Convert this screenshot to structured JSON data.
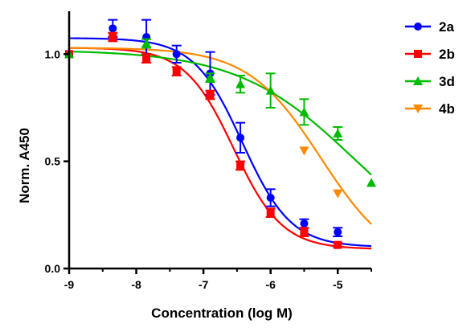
{
  "chart_data": {
    "type": "scatter",
    "title": "",
    "xlabel": "Concentration (log M)",
    "ylabel": "Norm. A450",
    "xlim": [
      -9,
      -4.5
    ],
    "ylim": [
      0,
      1.2
    ],
    "x_ticks": [
      -9,
      -8,
      -7,
      -6,
      -5
    ],
    "x_tick_labels": [
      "-9",
      "-8",
      "-7",
      "-6",
      "-5"
    ],
    "y_ticks": [
      0.0,
      0.5,
      1.0
    ],
    "y_tick_labels": [
      "0.0",
      "0.5",
      "1.0"
    ],
    "grid": false,
    "legend_position": "right",
    "series": [
      {
        "name": "2a",
        "color": "#0000ff",
        "marker": "circle",
        "x": [
          -9,
          -8.35,
          -7.85,
          -7.4,
          -6.9,
          -6.45,
          -6.0,
          -5.5,
          -5.0
        ],
        "y": [
          1.0,
          1.12,
          1.08,
          1.0,
          0.91,
          0.61,
          0.33,
          0.21,
          0.17
        ],
        "err": [
          0,
          0.04,
          0.08,
          0.04,
          0.1,
          0.07,
          0.04,
          0.02,
          0.02
        ],
        "fit": {
          "top": 1.075,
          "bottom": 0.1,
          "logIC50": -6.42,
          "hill": 1.2
        }
      },
      {
        "name": "2b",
        "color": "#ff0000",
        "marker": "square",
        "x": [
          -9,
          -8.35,
          -7.85,
          -7.4,
          -6.9,
          -6.45,
          -6.0,
          -5.5,
          -5.0
        ],
        "y": [
          1.0,
          1.08,
          0.98,
          0.92,
          0.81,
          0.48,
          0.26,
          0.17,
          0.11
        ],
        "err": [
          0,
          0.02,
          0.02,
          0.02,
          0.02,
          0.02,
          0.02,
          0.02,
          0.01
        ],
        "fit": {
          "top": 1.03,
          "bottom": 0.09,
          "logIC50": -6.55,
          "hill": 1.2
        }
      },
      {
        "name": "3d",
        "color": "#00bb00",
        "marker": "triangle-up",
        "x": [
          -9,
          -7.85,
          -6.9,
          -6.45,
          -6.0,
          -5.5,
          -5.0,
          -4.5
        ],
        "y": [
          1.0,
          1.05,
          0.89,
          0.86,
          0.83,
          0.73,
          0.63,
          0.4
        ],
        "err": [
          0,
          0.02,
          0.02,
          0.04,
          0.08,
          0.06,
          0.03,
          0
        ],
        "fit": {
          "top": 1.02,
          "bottom": 0.0,
          "logIC50": -4.75,
          "hill": 0.5
        }
      },
      {
        "name": "4b",
        "color": "#ff8800",
        "marker": "triangle-down",
        "x": [
          -5.5,
          -5.0
        ],
        "y": [
          0.55,
          0.35
        ],
        "err": [
          0,
          0
        ],
        "fit": {
          "top": 1.03,
          "bottom": 0.0,
          "logIC50": -5.25,
          "hill": 0.8
        }
      }
    ]
  }
}
